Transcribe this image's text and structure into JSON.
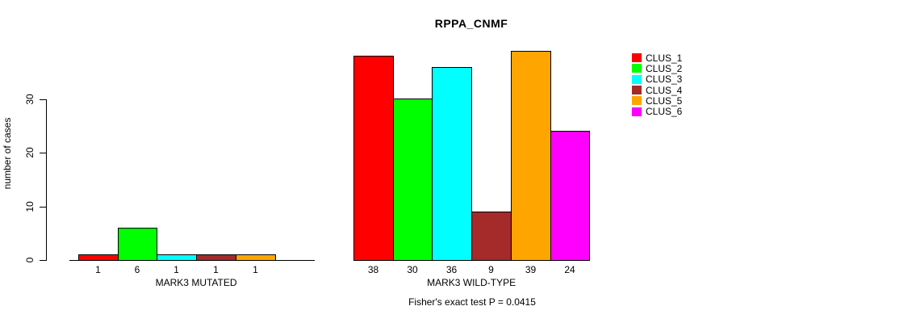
{
  "chart_data": {
    "type": "bar",
    "title": "RPPA_CNMF",
    "ylabel": "number of cases",
    "yticks": [
      0,
      10,
      20,
      30
    ],
    "ylim": [
      0,
      39
    ],
    "grid": false,
    "legend_position": "right",
    "value_labels": "below bars; labels omitted for zero-value bars",
    "clusters": [
      {
        "name": "CLUS_1",
        "color": "#FF0000"
      },
      {
        "name": "CLUS_2",
        "color": "#00FF00"
      },
      {
        "name": "CLUS_3",
        "color": "#00FFFF"
      },
      {
        "name": "CLUS_4",
        "color": "#A52A2A"
      },
      {
        "name": "CLUS_5",
        "color": "#FFA500"
      },
      {
        "name": "CLUS_6",
        "color": "#FF00FF"
      }
    ],
    "groups": [
      {
        "label": "MARK3 MUTATED",
        "values": [
          1,
          6,
          1,
          1,
          1,
          0
        ]
      },
      {
        "label": "MARK3 WILD-TYPE",
        "values": [
          38,
          30,
          36,
          9,
          39,
          24
        ]
      }
    ],
    "annotation": "Fisher's exact test P = 0.0415"
  }
}
